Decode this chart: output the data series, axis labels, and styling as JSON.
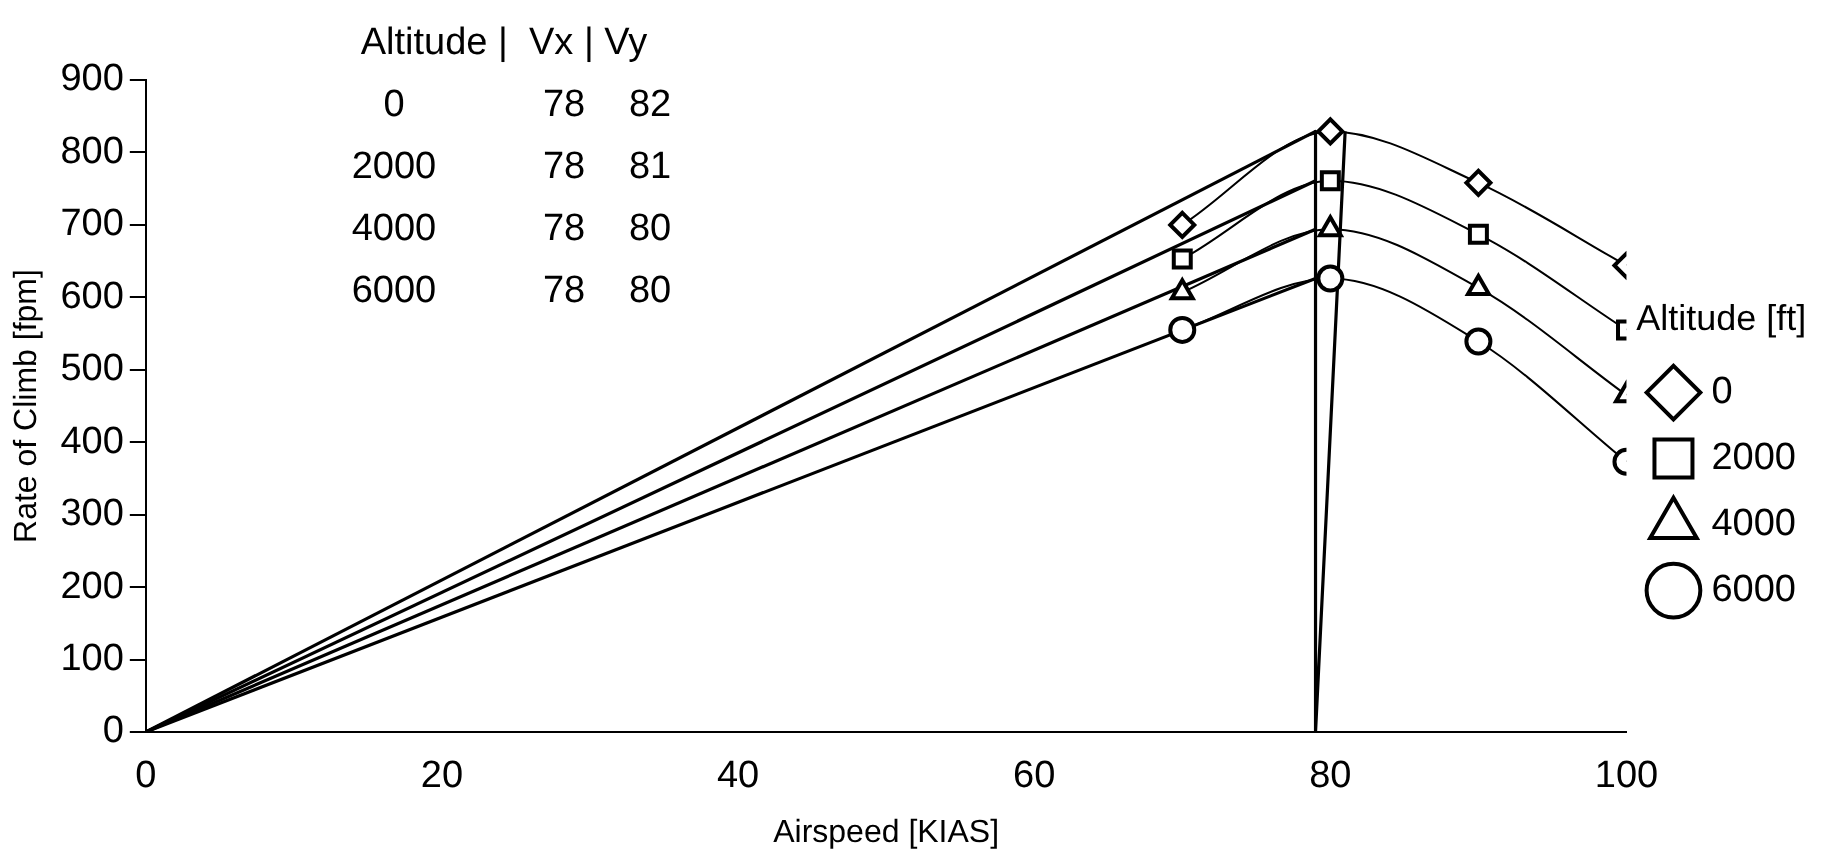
{
  "chart_data": {
    "type": "line",
    "xlabel": "Airspeed [KIAS]",
    "ylabel": "Rate of Climb [fpm]",
    "legend_title": "Altitude [ft]",
    "legend": "right",
    "grid": false,
    "line_style": "solid",
    "xlim": [
      0,
      100
    ],
    "xticks": [
      0,
      20,
      40,
      60,
      80,
      100
    ],
    "ylim": [
      0,
      900
    ],
    "yticks": [
      0,
      100,
      200,
      300,
      400,
      500,
      600,
      700,
      800,
      900
    ],
    "annotations": [
      "Altitude |  Vx | Vy",
      "0 78 82",
      "2000 78 81",
      "4000 78 80",
      "6000 78 80"
    ],
    "series": [
      {
        "name": "0",
        "color": "#000000",
        "marker": "diamond",
        "x": [
          70,
          80,
          90,
          100
        ],
        "values": [
          700,
          829,
          758,
          644
        ]
      },
      {
        "name": "2000",
        "color": "#000000",
        "marker": "square",
        "x": [
          70,
          80,
          90,
          100
        ],
        "values": [
          653,
          761,
          687,
          555
        ]
      },
      {
        "name": "4000",
        "color": "#000000",
        "marker": "triangle",
        "x": [
          70,
          80,
          90,
          100
        ],
        "values": [
          607,
          694,
          613,
          465
        ]
      },
      {
        "name": "6000",
        "color": "#000000",
        "marker": "circle",
        "x": [
          70,
          80,
          90,
          100
        ],
        "values": [
          555,
          626,
          539,
          373
        ]
      },
      {
        "color": "#000000",
        "marker": "none",
        "x": [
          0,
          79
        ],
        "values": [
          0,
          829
        ]
      },
      {
        "color": "#000000",
        "marker": "none",
        "x": [
          0,
          79
        ],
        "values": [
          0,
          761
        ]
      },
      {
        "color": "#000000",
        "marker": "none",
        "x": [
          0,
          79
        ],
        "values": [
          0,
          694
        ]
      },
      {
        "color": "#000000",
        "marker": "none",
        "x": [
          0,
          79
        ],
        "values": [
          0,
          626
        ]
      },
      {
        "color": "#000000",
        "marker": "none",
        "x": [
          79,
          79,
          81
        ],
        "values": [
          829,
          0,
          829
        ]
      }
    ]
  }
}
